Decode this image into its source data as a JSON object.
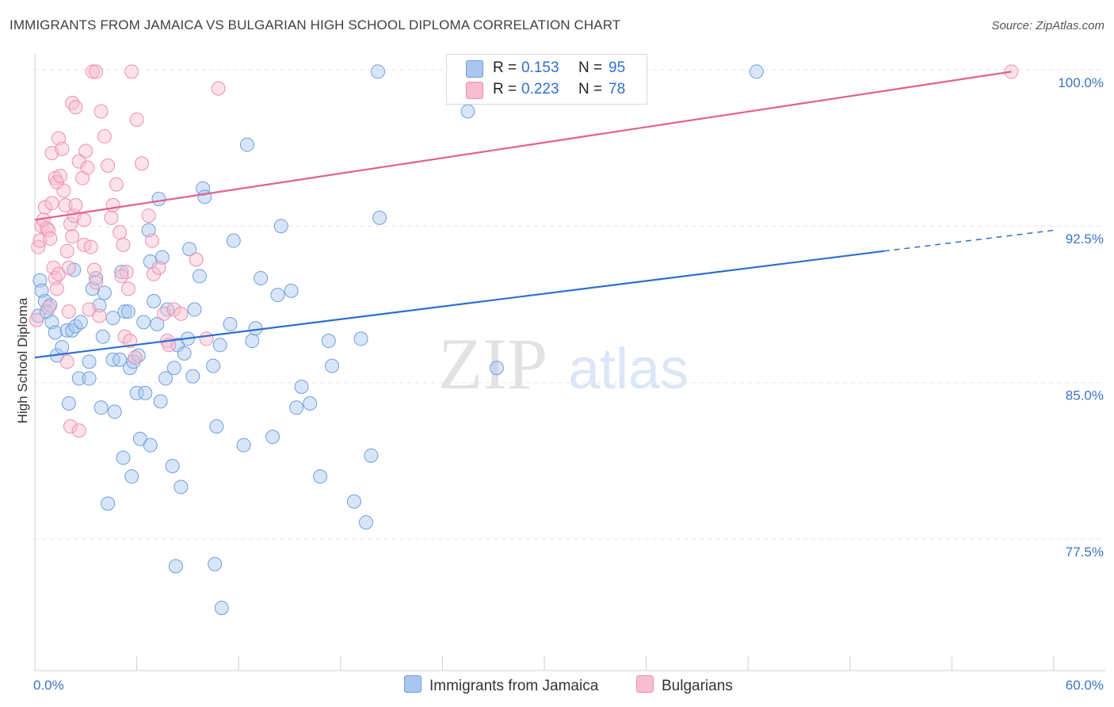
{
  "title": "IMMIGRANTS FROM JAMAICA VS BULGARIAN HIGH SCHOOL DIPLOMA CORRELATION CHART",
  "source": "Source: ZipAtlas.com",
  "watermark": {
    "zip": "ZIP",
    "atlas": "atlas"
  },
  "legend": {
    "r_label": "R =",
    "n_label": "N =",
    "series": [
      {
        "name": "Immigrants from Jamaica",
        "r": "0.153",
        "n": "95",
        "color": "#a9c6ee",
        "stroke": "#6f9fde"
      },
      {
        "name": "Bulgarians",
        "r": "0.223",
        "n": "78",
        "color": "#f7bcd0",
        "stroke": "#ec8fb0"
      }
    ]
  },
  "chart_data": {
    "type": "scatter",
    "xlabel": "",
    "ylabel": "High School Diploma",
    "xlim": [
      0,
      60
    ],
    "ylim": [
      71.2,
      100.6
    ],
    "x_tick_labels": [
      "0.0%",
      "60.0%"
    ],
    "y_ticks": [
      77.5,
      85.0,
      92.5,
      100.0
    ],
    "y_tick_labels": [
      "77.5%",
      "85.0%",
      "92.5%",
      "100.0%"
    ],
    "series": [
      {
        "name": "Immigrants from Jamaica",
        "color": "#a9c6ee",
        "line_color": "#2e6fd0",
        "trend": {
          "x0": 0,
          "y0": 86.2,
          "x1": 50,
          "y1": 91.3,
          "dash_to_x": 60,
          "dash_to_y": 92.3
        },
        "points": [
          [
            0.2,
            88.2
          ],
          [
            0.3,
            89.9
          ],
          [
            0.4,
            89.4
          ],
          [
            0.6,
            88.9
          ],
          [
            0.7,
            88.4
          ],
          [
            0.9,
            88.7
          ],
          [
            1.0,
            87.9
          ],
          [
            1.2,
            87.4
          ],
          [
            1.3,
            86.3
          ],
          [
            1.6,
            86.7
          ],
          [
            1.9,
            87.5
          ],
          [
            2.2,
            87.5
          ],
          [
            2.4,
            87.7
          ],
          [
            2.7,
            87.9
          ],
          [
            2.3,
            90.4
          ],
          [
            3.4,
            89.5
          ],
          [
            3.6,
            90.0
          ],
          [
            3.8,
            88.7
          ],
          [
            4.0,
            87.2
          ],
          [
            4.1,
            89.3
          ],
          [
            3.2,
            86.0
          ],
          [
            2.6,
            85.2
          ],
          [
            3.2,
            85.2
          ],
          [
            3.9,
            83.8
          ],
          [
            2.0,
            84.0
          ],
          [
            4.6,
            88.1
          ],
          [
            4.6,
            86.1
          ],
          [
            4.7,
            83.6
          ],
          [
            5.0,
            86.1
          ],
          [
            5.6,
            85.7
          ],
          [
            5.8,
            86.0
          ],
          [
            5.1,
            90.3
          ],
          [
            5.2,
            81.4
          ],
          [
            4.3,
            79.2
          ],
          [
            5.7,
            80.5
          ],
          [
            6.2,
            82.3
          ],
          [
            6.8,
            82.0
          ],
          [
            5.3,
            88.4
          ],
          [
            5.5,
            88.4
          ],
          [
            6.4,
            87.9
          ],
          [
            6.0,
            84.5
          ],
          [
            6.5,
            84.5
          ],
          [
            6.1,
            86.3
          ],
          [
            7.2,
            87.8
          ],
          [
            7.5,
            91.0
          ],
          [
            6.7,
            92.3
          ],
          [
            7.3,
            93.8
          ],
          [
            6.8,
            90.8
          ],
          [
            7.0,
            88.9
          ],
          [
            7.4,
            84.1
          ],
          [
            7.7,
            85.2
          ],
          [
            7.8,
            88.5
          ],
          [
            8.2,
            85.7
          ],
          [
            8.4,
            86.8
          ],
          [
            8.1,
            81.0
          ],
          [
            8.6,
            80.0
          ],
          [
            8.8,
            86.4
          ],
          [
            8.3,
            76.2
          ],
          [
            9.0,
            87.1
          ],
          [
            9.3,
            85.3
          ],
          [
            9.4,
            88.5
          ],
          [
            9.1,
            91.4
          ],
          [
            9.7,
            90.1
          ],
          [
            9.9,
            94.3
          ],
          [
            10.0,
            93.9
          ],
          [
            10.5,
            85.8
          ],
          [
            10.7,
            82.9
          ],
          [
            10.6,
            76.3
          ],
          [
            11.0,
            74.2
          ],
          [
            10.9,
            86.8
          ],
          [
            11.5,
            87.8
          ],
          [
            11.7,
            91.8
          ],
          [
            12.3,
            82.0
          ],
          [
            12.8,
            87.0
          ],
          [
            13.0,
            87.6
          ],
          [
            12.5,
            96.4
          ],
          [
            13.3,
            90.0
          ],
          [
            14.0,
            82.4
          ],
          [
            14.3,
            89.2
          ],
          [
            14.5,
            92.5
          ],
          [
            15.1,
            89.4
          ],
          [
            15.4,
            83.8
          ],
          [
            15.7,
            84.8
          ],
          [
            16.2,
            84.0
          ],
          [
            16.8,
            80.5
          ],
          [
            17.3,
            87.0
          ],
          [
            17.5,
            85.8
          ],
          [
            18.8,
            79.3
          ],
          [
            19.2,
            87.1
          ],
          [
            19.5,
            78.3
          ],
          [
            19.8,
            81.5
          ],
          [
            20.3,
            92.9
          ],
          [
            20.2,
            99.9
          ],
          [
            25.5,
            98.0
          ],
          [
            27.2,
            85.7
          ],
          [
            42.5,
            99.9
          ]
        ]
      },
      {
        "name": "Bulgarians",
        "color": "#f7bcd0",
        "line_color": "#e0608e",
        "trend": {
          "x0": 0,
          "y0": 92.8,
          "x1": 57.5,
          "y1": 99.9
        },
        "points": [
          [
            0.1,
            88.0
          ],
          [
            0.2,
            91.5
          ],
          [
            0.3,
            91.8
          ],
          [
            0.4,
            92.5
          ],
          [
            0.5,
            92.8
          ],
          [
            0.6,
            93.4
          ],
          [
            0.7,
            92.4
          ],
          [
            0.8,
            92.3
          ],
          [
            0.9,
            91.9
          ],
          [
            1.0,
            93.6
          ],
          [
            1.1,
            90.5
          ],
          [
            1.2,
            90.0
          ],
          [
            1.3,
            89.5
          ],
          [
            1.4,
            90.2
          ],
          [
            1.0,
            96.0
          ],
          [
            1.2,
            94.8
          ],
          [
            1.3,
            94.6
          ],
          [
            1.4,
            96.7
          ],
          [
            1.5,
            94.9
          ],
          [
            1.6,
            96.2
          ],
          [
            1.7,
            94.2
          ],
          [
            1.8,
            93.5
          ],
          [
            1.9,
            91.3
          ],
          [
            2.0,
            90.5
          ],
          [
            2.1,
            92.6
          ],
          [
            2.2,
            92.0
          ],
          [
            2.3,
            93.0
          ],
          [
            2.4,
            93.5
          ],
          [
            2.0,
            88.4
          ],
          [
            1.9,
            86.0
          ],
          [
            2.1,
            82.9
          ],
          [
            2.6,
            82.7
          ],
          [
            2.2,
            98.4
          ],
          [
            2.4,
            98.2
          ],
          [
            2.6,
            95.6
          ],
          [
            2.8,
            94.8
          ],
          [
            2.9,
            92.8
          ],
          [
            3.0,
            96.1
          ],
          [
            3.1,
            95.3
          ],
          [
            2.9,
            91.6
          ],
          [
            3.3,
            91.5
          ],
          [
            3.5,
            90.4
          ],
          [
            3.6,
            89.8
          ],
          [
            3.2,
            88.5
          ],
          [
            3.8,
            88.2
          ],
          [
            3.4,
            99.9
          ],
          [
            3.6,
            99.9
          ],
          [
            3.9,
            98.0
          ],
          [
            4.1,
            96.8
          ],
          [
            4.3,
            95.4
          ],
          [
            4.5,
            92.9
          ],
          [
            4.6,
            93.5
          ],
          [
            4.8,
            94.5
          ],
          [
            5.0,
            92.2
          ],
          [
            5.2,
            91.6
          ],
          [
            5.4,
            90.3
          ],
          [
            5.5,
            89.5
          ],
          [
            5.1,
            90.1
          ],
          [
            5.3,
            87.2
          ],
          [
            5.6,
            87.0
          ],
          [
            5.9,
            86.2
          ],
          [
            5.7,
            99.9
          ],
          [
            6.0,
            97.6
          ],
          [
            6.3,
            95.5
          ],
          [
            6.7,
            93.0
          ],
          [
            6.9,
            91.8
          ],
          [
            7.0,
            90.2
          ],
          [
            7.3,
            90.5
          ],
          [
            7.6,
            88.3
          ],
          [
            7.8,
            87.0
          ],
          [
            7.9,
            86.8
          ],
          [
            8.2,
            88.5
          ],
          [
            8.6,
            88.3
          ],
          [
            9.5,
            90.9
          ],
          [
            10.1,
            87.1
          ],
          [
            10.8,
            99.1
          ],
          [
            0.8,
            88.6
          ],
          [
            57.5,
            99.9
          ]
        ]
      }
    ]
  }
}
